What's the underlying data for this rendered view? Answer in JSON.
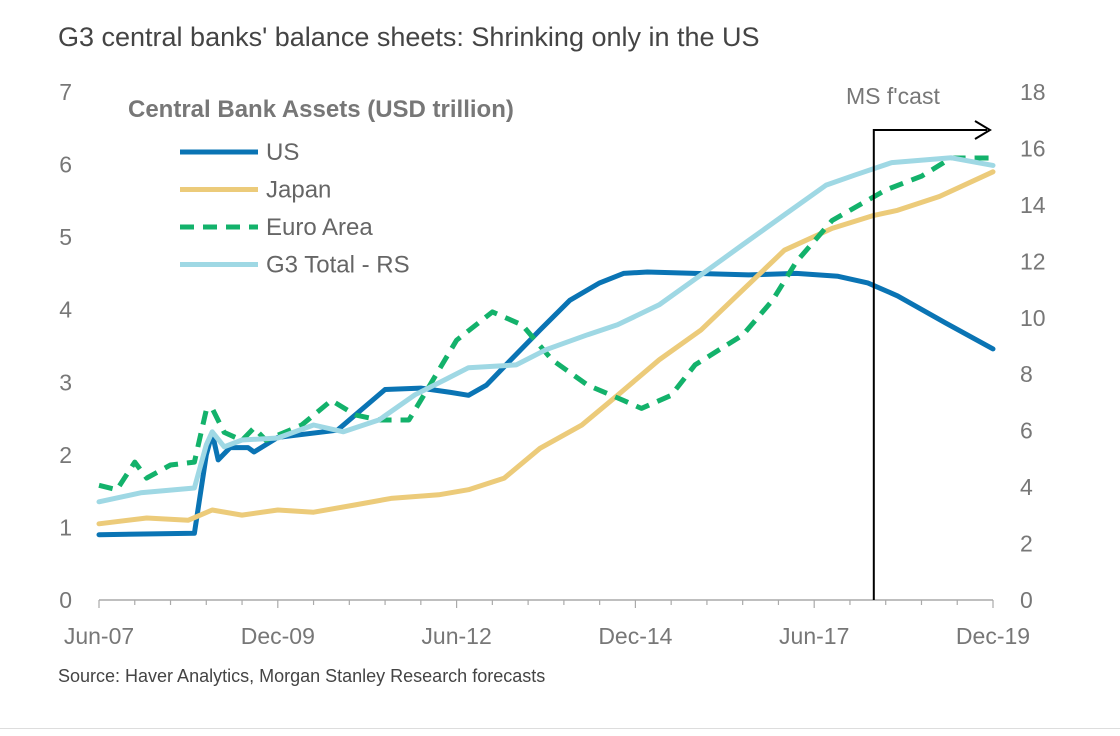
{
  "title": "G3 central banks' balance sheets: Shrinking only in the US",
  "source": "Source: Haver Analytics, Morgan Stanley Research forecasts",
  "chart_data": {
    "type": "line",
    "legend_title": "Central Bank Assets (USD trillion)",
    "legend_position": "top-left",
    "grid": false,
    "x_ticks": [
      "Jun-07",
      "Dec-09",
      "Jun-12",
      "Dec-14",
      "Jun-17",
      "Dec-19"
    ],
    "xlim": [
      "2007-06",
      "2019-12"
    ],
    "ylim_left": [
      0,
      7
    ],
    "y_ticks_left": [
      "0",
      "1",
      "2",
      "3",
      "4",
      "5",
      "6",
      "7"
    ],
    "ylim_right": [
      0,
      18
    ],
    "y_ticks_right": [
      "0",
      "2",
      "4",
      "6",
      "8",
      "10",
      "12",
      "14",
      "16",
      "18"
    ],
    "annotation": {
      "label": "MS f'cast",
      "date": "2018-04"
    },
    "series": [
      {
        "name": "US",
        "axis": "left",
        "color": "#0a74b4",
        "dashed": false,
        "points": [
          [
            "2007-06",
            0.9
          ],
          [
            "2008-10",
            0.92
          ],
          [
            "2008-12",
            2.0
          ],
          [
            "2009-01",
            2.3
          ],
          [
            "2009-02",
            1.93
          ],
          [
            "2009-04",
            2.1
          ],
          [
            "2009-07",
            2.1
          ],
          [
            "2009-08",
            2.04
          ],
          [
            "2009-12",
            2.24
          ],
          [
            "2010-10",
            2.34
          ],
          [
            "2011-06",
            2.9
          ],
          [
            "2011-12",
            2.92
          ],
          [
            "2012-05",
            2.86
          ],
          [
            "2012-08",
            2.82
          ],
          [
            "2012-11",
            2.96
          ],
          [
            "2013-03",
            3.3
          ],
          [
            "2013-08",
            3.72
          ],
          [
            "2014-01",
            4.13
          ],
          [
            "2014-06",
            4.37
          ],
          [
            "2014-10",
            4.5
          ],
          [
            "2015-02",
            4.52
          ],
          [
            "2015-10",
            4.5
          ],
          [
            "2016-07",
            4.48
          ],
          [
            "2017-03",
            4.5
          ],
          [
            "2017-10",
            4.46
          ],
          [
            "2018-03",
            4.37
          ],
          [
            "2018-08",
            4.19
          ],
          [
            "2019-04",
            3.82
          ],
          [
            "2019-12",
            3.46
          ]
        ]
      },
      {
        "name": "Japan",
        "axis": "left",
        "color": "#eccb7a",
        "dashed": false,
        "points": [
          [
            "2007-06",
            1.05
          ],
          [
            "2008-02",
            1.13
          ],
          [
            "2008-09",
            1.1
          ],
          [
            "2009-01",
            1.24
          ],
          [
            "2009-06",
            1.17
          ],
          [
            "2009-12",
            1.24
          ],
          [
            "2010-06",
            1.21
          ],
          [
            "2011-01",
            1.31
          ],
          [
            "2011-07",
            1.4
          ],
          [
            "2012-03",
            1.45
          ],
          [
            "2012-08",
            1.52
          ],
          [
            "2013-02",
            1.68
          ],
          [
            "2013-08",
            2.09
          ],
          [
            "2014-03",
            2.41
          ],
          [
            "2014-09",
            2.82
          ],
          [
            "2015-04",
            3.31
          ],
          [
            "2015-11",
            3.72
          ],
          [
            "2016-06",
            4.27
          ],
          [
            "2017-01",
            4.82
          ],
          [
            "2017-09",
            5.12
          ],
          [
            "2018-04",
            5.3
          ],
          [
            "2018-08",
            5.37
          ],
          [
            "2019-03",
            5.56
          ],
          [
            "2019-12",
            5.9
          ]
        ]
      },
      {
        "name": "Euro Area",
        "axis": "left",
        "color": "#13b26b",
        "dashed": true,
        "points": [
          [
            "2007-06",
            1.58
          ],
          [
            "2007-09",
            1.52
          ],
          [
            "2007-12",
            1.9
          ],
          [
            "2008-02",
            1.68
          ],
          [
            "2008-06",
            1.86
          ],
          [
            "2008-10",
            1.9
          ],
          [
            "2008-12",
            2.62
          ],
          [
            "2009-01",
            2.64
          ],
          [
            "2009-03",
            2.31
          ],
          [
            "2009-06",
            2.2
          ],
          [
            "2009-08",
            2.37
          ],
          [
            "2009-10",
            2.2
          ],
          [
            "2010-04",
            2.41
          ],
          [
            "2010-09",
            2.75
          ],
          [
            "2011-01",
            2.55
          ],
          [
            "2011-05",
            2.48
          ],
          [
            "2011-10",
            2.48
          ],
          [
            "2012-01",
            2.89
          ],
          [
            "2012-06",
            3.58
          ],
          [
            "2012-12",
            3.97
          ],
          [
            "2013-05",
            3.79
          ],
          [
            "2013-10",
            3.31
          ],
          [
            "2014-04",
            2.96
          ],
          [
            "2014-10",
            2.75
          ],
          [
            "2015-01",
            2.64
          ],
          [
            "2015-06",
            2.82
          ],
          [
            "2015-10",
            3.24
          ],
          [
            "2016-06",
            3.65
          ],
          [
            "2016-11",
            4.13
          ],
          [
            "2017-03",
            4.66
          ],
          [
            "2017-09",
            5.23
          ],
          [
            "2018-06",
            5.65
          ],
          [
            "2018-12",
            5.84
          ],
          [
            "2019-05",
            6.09
          ],
          [
            "2019-12",
            6.09
          ]
        ]
      },
      {
        "name": "G3 Total - RS",
        "axis": "right",
        "color": "#9fd8e4",
        "dashed": false,
        "points": [
          [
            "2007-06",
            3.48
          ],
          [
            "2008-01",
            3.8
          ],
          [
            "2008-10",
            3.97
          ],
          [
            "2008-12",
            5.5
          ],
          [
            "2009-01",
            5.96
          ],
          [
            "2009-03",
            5.43
          ],
          [
            "2009-06",
            5.67
          ],
          [
            "2009-12",
            5.74
          ],
          [
            "2010-06",
            6.2
          ],
          [
            "2010-11",
            5.96
          ],
          [
            "2011-05",
            6.38
          ],
          [
            "2011-11",
            7.27
          ],
          [
            "2012-04",
            7.8
          ],
          [
            "2012-08",
            8.23
          ],
          [
            "2013-04",
            8.33
          ],
          [
            "2013-09",
            8.87
          ],
          [
            "2014-04",
            9.4
          ],
          [
            "2014-09",
            9.75
          ],
          [
            "2015-04",
            10.46
          ],
          [
            "2015-11",
            11.52
          ],
          [
            "2016-06",
            12.59
          ],
          [
            "2017-01",
            13.65
          ],
          [
            "2017-08",
            14.7
          ],
          [
            "2018-01",
            15.07
          ],
          [
            "2018-07",
            15.5
          ],
          [
            "2019-05",
            15.67
          ],
          [
            "2019-12",
            15.4
          ]
        ]
      }
    ]
  }
}
